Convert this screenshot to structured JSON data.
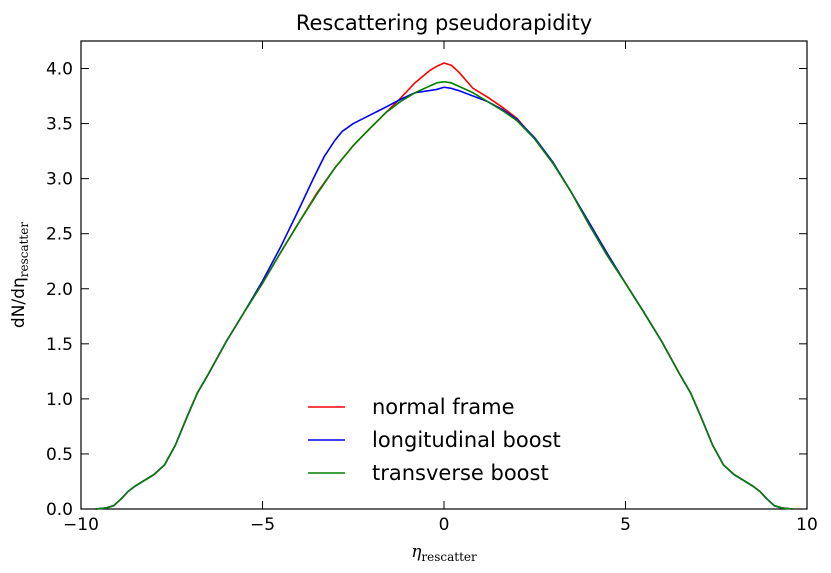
{
  "chart_data": {
    "type": "line",
    "title": "Rescattering pseudorapidity",
    "xlabel": {
      "main": "η",
      "sub": "rescatter"
    },
    "ylabel": {
      "main": "dN/dη",
      "sub": "rescatter"
    },
    "xlim": [
      -10,
      10
    ],
    "ylim": [
      0.0,
      4.25
    ],
    "xticks": [
      -10,
      -5,
      0,
      5,
      10
    ],
    "xtick_labels": [
      "−10",
      "−5",
      "0",
      "5",
      "10"
    ],
    "yticks": [
      0.0,
      0.5,
      1.0,
      1.5,
      2.0,
      2.5,
      3.0,
      3.5,
      4.0
    ],
    "ytick_labels": [
      "0.0",
      "0.5",
      "1.0",
      "1.5",
      "2.0",
      "2.5",
      "3.0",
      "3.5",
      "4.0"
    ],
    "grid": false,
    "legend_position": "bottom-center",
    "series": [
      {
        "name": "normal frame",
        "color": "#ff0000",
        "x": [
          -9.6,
          -9.3,
          -9.1,
          -8.9,
          -8.7,
          -8.5,
          -8.3,
          -8.0,
          -7.7,
          -7.4,
          -7.1,
          -6.8,
          -6.5,
          -6.0,
          -5.5,
          -5.0,
          -4.5,
          -4.0,
          -3.5,
          -3.0,
          -2.5,
          -2.0,
          -1.6,
          -1.2,
          -0.8,
          -0.4,
          -0.2,
          0.0,
          0.2,
          0.4,
          0.8,
          1.2,
          1.6,
          2.0,
          2.5,
          3.0,
          3.5,
          4.0,
          4.5,
          5.0,
          5.5,
          6.0,
          6.5,
          6.8,
          7.1,
          7.4,
          7.7,
          8.0,
          8.3,
          8.5,
          8.7,
          8.9,
          9.1,
          9.3,
          9.6
        ],
        "y": [
          0.0,
          0.01,
          0.03,
          0.09,
          0.16,
          0.21,
          0.25,
          0.31,
          0.4,
          0.58,
          0.82,
          1.05,
          1.22,
          1.52,
          1.79,
          2.05,
          2.33,
          2.6,
          2.87,
          3.1,
          3.3,
          3.47,
          3.6,
          3.73,
          3.87,
          3.98,
          4.02,
          4.05,
          4.03,
          3.97,
          3.82,
          3.74,
          3.65,
          3.55,
          3.36,
          3.14,
          2.88,
          2.58,
          2.3,
          2.05,
          1.79,
          1.52,
          1.22,
          1.05,
          0.82,
          0.58,
          0.4,
          0.31,
          0.25,
          0.21,
          0.16,
          0.09,
          0.03,
          0.01,
          0.0
        ]
      },
      {
        "name": "longitudinal boost",
        "color": "#0000ff",
        "x": [
          -9.6,
          -9.3,
          -9.1,
          -8.9,
          -8.7,
          -8.5,
          -8.3,
          -8.0,
          -7.7,
          -7.4,
          -7.1,
          -6.8,
          -6.5,
          -6.0,
          -5.5,
          -5.0,
          -4.5,
          -4.0,
          -3.6,
          -3.3,
          -3.0,
          -2.8,
          -2.5,
          -2.2,
          -1.9,
          -1.6,
          -1.2,
          -0.8,
          -0.4,
          -0.2,
          0.0,
          0.2,
          0.4,
          0.8,
          1.2,
          1.6,
          2.0,
          2.5,
          3.0,
          3.5,
          4.0,
          4.5,
          5.0,
          5.5,
          6.0,
          6.5,
          6.8,
          7.1,
          7.4,
          7.7,
          8.0,
          8.3,
          8.5,
          8.7,
          8.9,
          9.1,
          9.3,
          9.6
        ],
        "y": [
          0.0,
          0.01,
          0.03,
          0.09,
          0.16,
          0.21,
          0.25,
          0.31,
          0.4,
          0.58,
          0.82,
          1.05,
          1.22,
          1.52,
          1.79,
          2.07,
          2.38,
          2.72,
          3.0,
          3.2,
          3.35,
          3.43,
          3.5,
          3.55,
          3.6,
          3.65,
          3.72,
          3.78,
          3.8,
          3.81,
          3.83,
          3.82,
          3.8,
          3.75,
          3.7,
          3.63,
          3.54,
          3.37,
          3.15,
          2.88,
          2.6,
          2.32,
          2.05,
          1.79,
          1.52,
          1.22,
          1.05,
          0.82,
          0.58,
          0.4,
          0.31,
          0.25,
          0.21,
          0.16,
          0.09,
          0.03,
          0.01,
          0.0
        ]
      },
      {
        "name": "transverse boost",
        "color": "#008000",
        "x": [
          -9.6,
          -9.3,
          -9.1,
          -8.9,
          -8.7,
          -8.5,
          -8.3,
          -8.0,
          -7.7,
          -7.4,
          -7.1,
          -6.8,
          -6.5,
          -6.0,
          -5.5,
          -5.0,
          -4.5,
          -4.0,
          -3.5,
          -3.0,
          -2.5,
          -2.0,
          -1.6,
          -1.2,
          -0.8,
          -0.4,
          -0.2,
          0.0,
          0.2,
          0.4,
          0.8,
          1.2,
          1.6,
          2.0,
          2.5,
          3.0,
          3.5,
          4.0,
          4.5,
          5.0,
          5.5,
          6.0,
          6.5,
          6.8,
          7.1,
          7.4,
          7.7,
          8.0,
          8.3,
          8.5,
          8.7,
          8.9,
          9.1,
          9.3,
          9.6
        ],
        "y": [
          0.0,
          0.01,
          0.03,
          0.09,
          0.16,
          0.21,
          0.25,
          0.31,
          0.4,
          0.58,
          0.82,
          1.05,
          1.22,
          1.52,
          1.79,
          2.05,
          2.33,
          2.6,
          2.86,
          3.1,
          3.3,
          3.47,
          3.6,
          3.7,
          3.78,
          3.84,
          3.87,
          3.88,
          3.87,
          3.84,
          3.78,
          3.7,
          3.62,
          3.53,
          3.36,
          3.14,
          2.88,
          2.58,
          2.3,
          2.05,
          1.79,
          1.52,
          1.22,
          1.05,
          0.82,
          0.58,
          0.4,
          0.31,
          0.25,
          0.21,
          0.16,
          0.09,
          0.03,
          0.01,
          0.0
        ]
      }
    ]
  }
}
